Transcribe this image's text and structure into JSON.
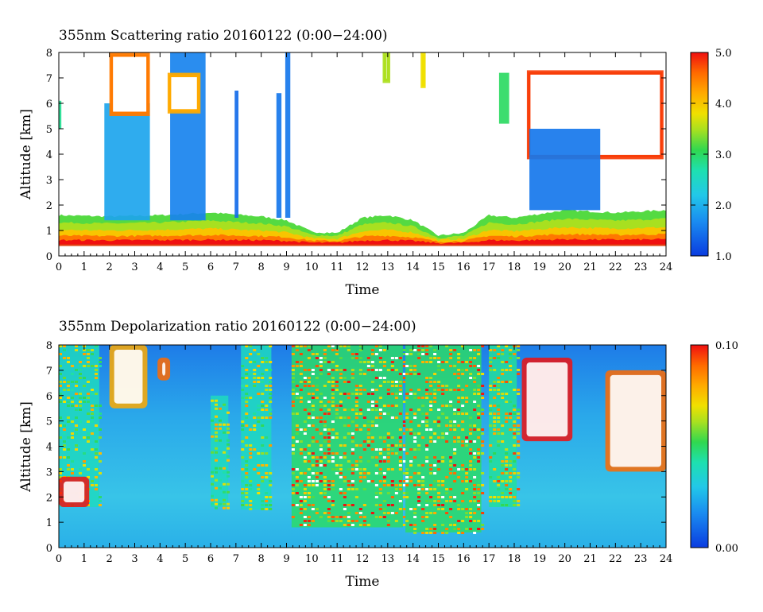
{
  "chart_data": [
    {
      "type": "heatmap",
      "title": "355nm Scattering ratio  20160122 (0:00−24:00)",
      "xlabel": "Time",
      "ylabel": "Altitude [km]",
      "xlim": [
        0,
        24
      ],
      "ylim": [
        0,
        8
      ],
      "x_ticks": [
        "0",
        "1",
        "2",
        "3",
        "4",
        "5",
        "6",
        "7",
        "8",
        "9",
        "10",
        "11",
        "12",
        "13",
        "14",
        "15",
        "16",
        "17",
        "18",
        "19",
        "20",
        "21",
        "22",
        "23",
        "24"
      ],
      "y_ticks": [
        "0",
        "1",
        "2",
        "3",
        "4",
        "5",
        "6",
        "7",
        "8"
      ],
      "colorbar": {
        "min": 1.0,
        "max": 5.0,
        "ticks": [
          "1.0",
          "2.0",
          "3.0",
          "4.0",
          "5.0"
        ]
      },
      "surface_line_km": 0.42,
      "aerosol_layer_top_km": [
        {
          "t": 0,
          "z": 1.6
        },
        {
          "t": 2,
          "z": 1.55
        },
        {
          "t": 4,
          "z": 1.6
        },
        {
          "t": 6,
          "z": 1.7
        },
        {
          "t": 8,
          "z": 1.55
        },
        {
          "t": 9,
          "z": 1.4
        },
        {
          "t": 10,
          "z": 0.95
        },
        {
          "t": 11,
          "z": 0.9
        },
        {
          "t": 12,
          "z": 1.5
        },
        {
          "t": 13,
          "z": 1.6
        },
        {
          "t": 14,
          "z": 1.4
        },
        {
          "t": 15,
          "z": 0.8
        },
        {
          "t": 16,
          "z": 0.9
        },
        {
          "t": 17,
          "z": 1.6
        },
        {
          "t": 18,
          "z": 1.5
        },
        {
          "t": 20,
          "z": 1.8
        },
        {
          "t": 22,
          "z": 1.7
        },
        {
          "t": 24,
          "z": 1.8
        }
      ],
      "cloud_features": [
        {
          "t0": 0.0,
          "t1": 0.1,
          "z0": 5.0,
          "z1": 6.1,
          "value": 2.8
        },
        {
          "t0": 1.8,
          "t1": 3.6,
          "z0": 1.4,
          "z1": 6.0,
          "value": 1.9
        },
        {
          "t0": 2.0,
          "t1": 3.6,
          "z0": 5.5,
          "z1": 8.0,
          "value": 4.5
        },
        {
          "t0": 4.4,
          "t1": 5.8,
          "z0": 1.4,
          "z1": 8.0,
          "value": 1.6
        },
        {
          "t0": 4.3,
          "t1": 5.6,
          "z0": 5.6,
          "z1": 7.2,
          "value": 4.2
        },
        {
          "t0": 6.95,
          "t1": 7.1,
          "z0": 1.5,
          "z1": 6.5,
          "value": 1.4
        },
        {
          "t0": 8.6,
          "t1": 8.8,
          "z0": 1.5,
          "z1": 6.4,
          "value": 1.5
        },
        {
          "t0": 8.95,
          "t1": 9.15,
          "z0": 1.5,
          "z1": 8.0,
          "value": 1.5
        },
        {
          "t0": 12.8,
          "t1": 13.1,
          "z0": 6.8,
          "z1": 8.0,
          "value": 3.5
        },
        {
          "t0": 14.3,
          "t1": 14.5,
          "z0": 6.6,
          "z1": 8.0,
          "value": 3.8
        },
        {
          "t0": 17.4,
          "t1": 17.8,
          "z0": 5.2,
          "z1": 7.2,
          "value": 3.0
        },
        {
          "t0": 18.5,
          "t1": 23.9,
          "z0": 3.8,
          "z1": 7.3,
          "value": 4.8
        },
        {
          "t0": 18.6,
          "t1": 21.4,
          "z0": 1.8,
          "z1": 5.0,
          "value": 1.5
        }
      ]
    },
    {
      "type": "heatmap",
      "title": "355nm Depolarization ratio  20160122 (0:00−24:00)",
      "xlabel": "Time",
      "ylabel": "Altitude [km]",
      "xlim": [
        0,
        24
      ],
      "ylim": [
        0,
        8
      ],
      "x_ticks": [
        "0",
        "1",
        "2",
        "3",
        "4",
        "5",
        "6",
        "7",
        "8",
        "9",
        "10",
        "11",
        "12",
        "13",
        "14",
        "15",
        "16",
        "17",
        "18",
        "19",
        "20",
        "21",
        "22",
        "23",
        "24"
      ],
      "y_ticks": [
        "0",
        "1",
        "2",
        "3",
        "4",
        "5",
        "6",
        "7",
        "8"
      ],
      "colorbar": {
        "min": 0.0,
        "max": 0.1,
        "ticks": [
          "0.00",
          "0.10"
        ]
      },
      "noisy_columns": [
        {
          "t0": 0.0,
          "t1": 1.6,
          "z0": 1.6,
          "z1": 8.0,
          "value": 0.07
        },
        {
          "t0": 6.0,
          "t1": 6.7,
          "z0": 1.6,
          "z1": 6.0,
          "value": 0.07
        },
        {
          "t0": 7.2,
          "t1": 8.4,
          "z0": 1.5,
          "z1": 8.0,
          "value": 0.07
        },
        {
          "t0": 9.2,
          "t1": 13.6,
          "z0": 0.8,
          "z1": 8.0,
          "value": 0.09
        },
        {
          "t0": 13.7,
          "t1": 16.7,
          "z0": 0.6,
          "z1": 8.0,
          "value": 0.09
        },
        {
          "t0": 17.0,
          "t1": 18.1,
          "z0": 1.6,
          "z1": 8.0,
          "value": 0.08
        }
      ],
      "cloud_features": [
        {
          "t0": 0.0,
          "t1": 1.2,
          "z0": 1.6,
          "z1": 2.8,
          "value": 0.1
        },
        {
          "t0": 2.0,
          "t1": 3.5,
          "z0": 5.5,
          "z1": 8.0,
          "value": 0.08
        },
        {
          "t0": 3.9,
          "t1": 4.4,
          "z0": 6.6,
          "z1": 7.5,
          "value": 0.09
        },
        {
          "t0": 18.3,
          "t1": 20.3,
          "z0": 4.2,
          "z1": 7.5,
          "value": 0.1
        },
        {
          "t0": 21.6,
          "t1": 24.0,
          "z0": 3.0,
          "z1": 7.0,
          "value": 0.09
        }
      ]
    }
  ]
}
